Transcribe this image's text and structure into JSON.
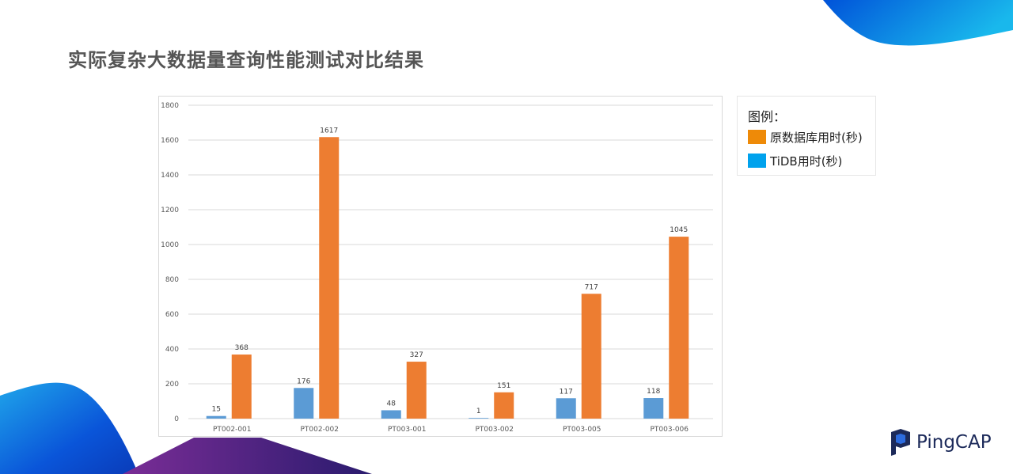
{
  "page": {
    "title": "实际复杂大数据量查询性能测试对比结果"
  },
  "legend": {
    "title": "图例：",
    "items": [
      {
        "label": "原数据库用时(秒)",
        "color": "#ed7d31"
      },
      {
        "label": "TiDB用时(秒)",
        "color": "#00a2ed"
      }
    ]
  },
  "chart_data": {
    "type": "bar",
    "categories": [
      "PT002-001",
      "PT002-002",
      "PT003-001",
      "PT003-002",
      "PT003-005",
      "PT003-006"
    ],
    "series": [
      {
        "values": [
          15,
          176,
          48,
          1,
          117,
          118
        ],
        "color": "#5b9bd5"
      },
      {
        "values": [
          368,
          1617,
          327,
          151,
          717,
          1045
        ],
        "color": "#ed7d31"
      }
    ],
    "ylim": [
      0,
      1800
    ],
    "yticks": [
      0,
      200,
      400,
      600,
      800,
      1000,
      1200,
      1400,
      1600,
      1800
    ],
    "grid": true,
    "data_labels": true,
    "legend_placement": "right"
  },
  "logo": {
    "text": "PingCAP",
    "colors": [
      "#1c2a5a",
      "#2d6cdf"
    ]
  },
  "decor_colors": [
    "#0052d9",
    "#19b8ec",
    "#6a2c91",
    "#0a3bb8"
  ]
}
